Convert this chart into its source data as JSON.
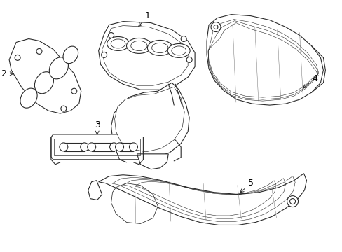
{
  "background_color": "#ffffff",
  "line_color": "#2a2a2a",
  "label_color": "#000000",
  "fig_width": 4.89,
  "fig_height": 3.6,
  "dpi": 100,
  "label_fontsize": 9,
  "line_width": 0.8
}
